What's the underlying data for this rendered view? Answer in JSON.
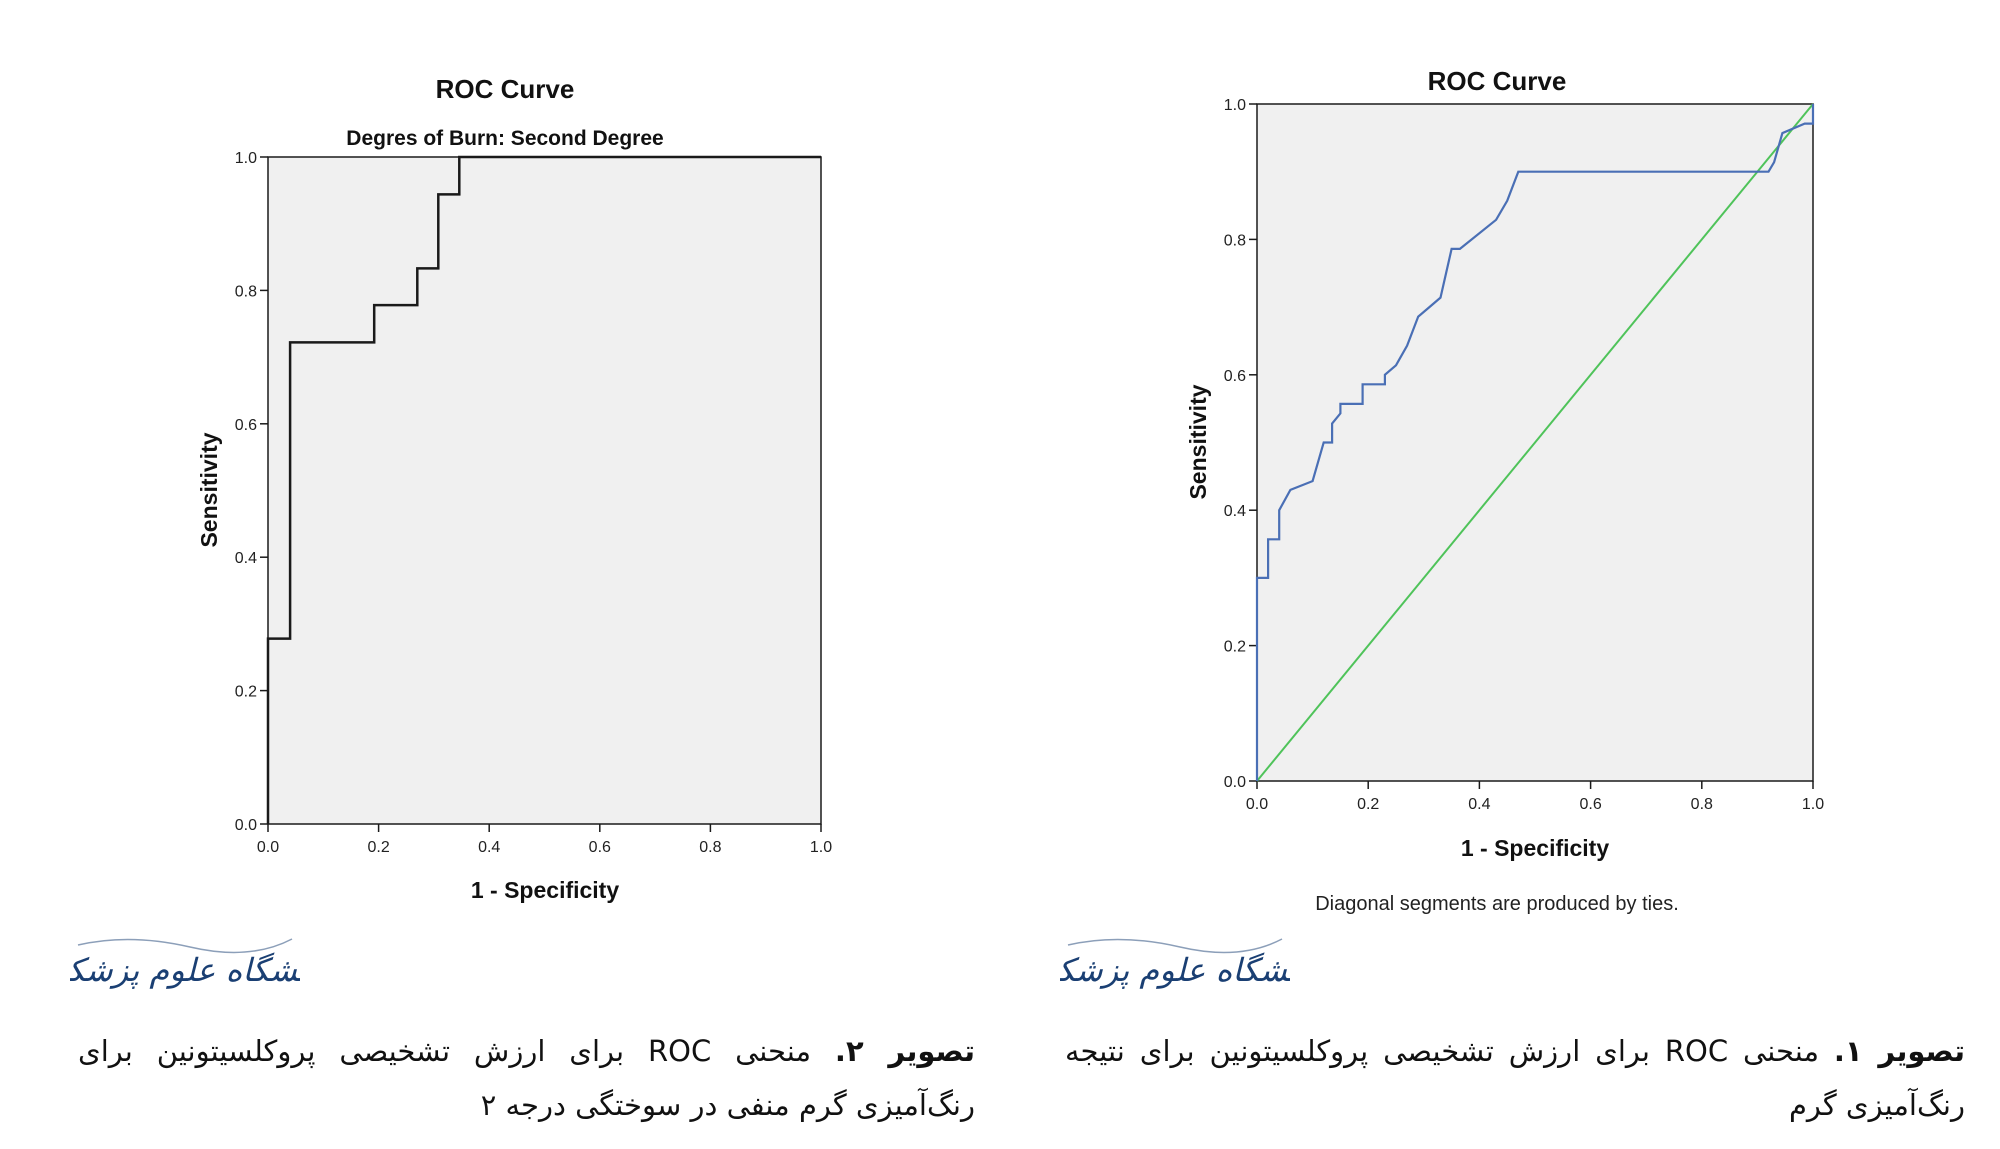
{
  "chart_data": [
    {
      "type": "line",
      "title": "ROC Curve",
      "subtitle": "Degres of Burn: Second Degree",
      "xlabel": "1 - Specificity",
      "ylabel": "Sensitivity",
      "xlim": [
        0,
        1
      ],
      "ylim": [
        0,
        1
      ],
      "xticks": [
        "0.0",
        "0.2",
        "0.4",
        "0.6",
        "0.8",
        "1.0"
      ],
      "yticks": [
        "0.0",
        "0.2",
        "0.4",
        "0.6",
        "0.8",
        "1.0"
      ],
      "grid": false,
      "series": [
        {
          "color": "#1a1a1a",
          "x": [
            0,
            0,
            0.04,
            0.04,
            0.192,
            0.192,
            0.27,
            0.27,
            0.308,
            0.308,
            0.346,
            0.346,
            1.0
          ],
          "y": [
            0,
            0.278,
            0.278,
            0.722,
            0.722,
            0.778,
            0.778,
            0.833,
            0.833,
            0.944,
            0.944,
            1.0,
            1.0
          ]
        }
      ]
    },
    {
      "type": "line",
      "title": "ROC Curve",
      "xlabel": "1 - Specificity",
      "ylabel": "Sensitivity",
      "footnote": "Diagonal segments are produced by ties.",
      "xlim": [
        0,
        1
      ],
      "ylim": [
        0,
        1
      ],
      "xticks": [
        "0.0",
        "0.2",
        "0.4",
        "0.6",
        "0.8",
        "1.0"
      ],
      "yticks": [
        "0.0",
        "0.2",
        "0.4",
        "0.6",
        "0.8",
        "1.0"
      ],
      "grid": false,
      "series": [
        {
          "color": "#4a6fb5",
          "x": [
            0,
            0,
            0.02,
            0.02,
            0.04,
            0.04,
            0.06,
            0.06,
            0.1,
            0.1,
            0.12,
            0.135,
            0.135,
            0.15,
            0.15,
            0.19,
            0.19,
            0.23,
            0.23,
            0.25,
            0.25,
            0.27,
            0.27,
            0.29,
            0.29,
            0.31,
            0.31,
            0.33,
            0.33,
            0.35,
            0.35,
            0.365,
            0.365,
            0.43,
            0.43,
            0.45,
            0.45,
            0.47,
            0.47,
            0.92,
            0.93,
            0.93,
            0.945,
            0.945,
            0.985,
            0.985,
            1.0,
            1.0
          ],
          "y": [
            0,
            0.3,
            0.3,
            0.357,
            0.357,
            0.4,
            0.43,
            0.43,
            0.443,
            0.443,
            0.5,
            0.5,
            0.528,
            0.543,
            0.557,
            0.557,
            0.586,
            0.586,
            0.6,
            0.614,
            0.614,
            0.643,
            0.643,
            0.686,
            0.686,
            0.7,
            0.7,
            0.714,
            0.714,
            0.786,
            0.786,
            0.786,
            0.786,
            0.829,
            0.829,
            0.857,
            0.857,
            0.9,
            0.9,
            0.9,
            0.914,
            0.914,
            0.957,
            0.957,
            0.971,
            0.971,
            0.971,
            1.0
          ]
        },
        {
          "color": "#4fc35a",
          "x": [
            0,
            1
          ],
          "y": [
            0,
            1
          ]
        }
      ]
    }
  ],
  "logo_text": "مجله دانشگاه علوم پزشکی گیلان",
  "captions": [
    {
      "label": "تصویر ۲.",
      "text": " منحنی ROC برای ارزش تشخیصی پروکلسیتونین برای رنگ‌آمیزی گرم منفی در سوختگی درجه ۲"
    },
    {
      "label": "تصویر ۱.",
      "text": " منحنی ROC برای ارزش تشخیصی پروکلسیتونین برای نتیجه رنگ‌آمیزی گرم"
    }
  ]
}
